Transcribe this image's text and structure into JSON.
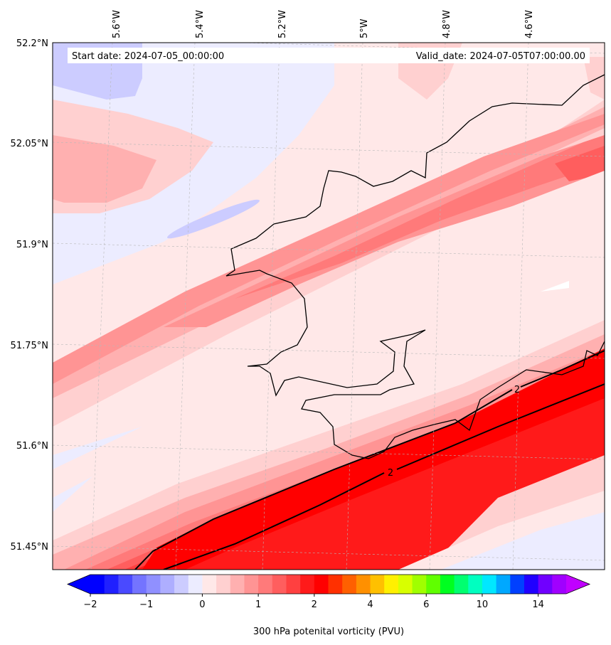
{
  "header": {
    "start_date": "Start date: 2024-07-05_00:00:00",
    "valid_date": "Valid_date: 2024-07-05T07:00:00.00"
  },
  "axes": {
    "lon_labels": [
      "5.6°W",
      "5.4°W",
      "5.2°W",
      "5°W",
      "4.8°W",
      "4.6°W"
    ],
    "lat_labels": [
      "52.2°N",
      "52.05°N",
      "51.9°N",
      "51.75°N",
      "51.6°N",
      "51.45°N"
    ]
  },
  "contour_labels": [
    "2",
    "2"
  ],
  "colorbar": {
    "label": "300 hPa potenital vorticity (PVU)",
    "ticks": [
      "−2",
      "−1",
      "0",
      "1",
      "2",
      "4",
      "6",
      "10",
      "14"
    ],
    "colors": [
      "#0000ff",
      "#2020ff",
      "#4a4aff",
      "#7474ff",
      "#9090ff",
      "#aeaeff",
      "#ccccff",
      "#ececff",
      "#ffe8e8",
      "#ffd0d0",
      "#ffb0b0",
      "#ff9494",
      "#ff7a7a",
      "#ff5e5e",
      "#ff4040",
      "#ff1a1a",
      "#ff0000",
      "#ff3000",
      "#ff6000",
      "#ff9000",
      "#ffc000",
      "#fff000",
      "#d8ff00",
      "#a0ff00",
      "#60ff00",
      "#00ff20",
      "#00ff70",
      "#00ffc0",
      "#00e8ff",
      "#00a8ff",
      "#0040ff",
      "#2000ff",
      "#7000ff",
      "#a000ff"
    ],
    "under_color": "#0000ff",
    "over_color": "#c000ff"
  },
  "chart_data": {
    "type": "heatmap",
    "variable": "300 hPa potenital vorticity (PVU)",
    "lon_range": [
      -5.7,
      -4.45
    ],
    "lat_range": [
      51.42,
      52.2
    ],
    "contour_levels_labeled": [
      2
    ]
  }
}
